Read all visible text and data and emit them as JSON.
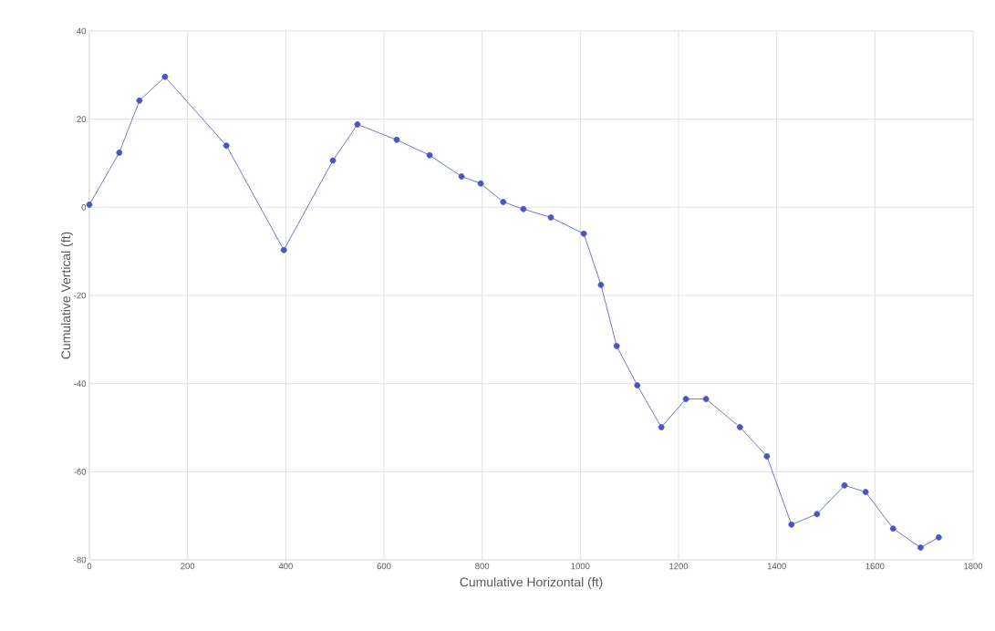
{
  "chart_data": {
    "type": "line",
    "xlabel": "Cumulative Horizontal (ft)",
    "ylabel": "Cumulative Vertical (ft)",
    "xlim": [
      0,
      1800
    ],
    "xticks": [
      0,
      200,
      400,
      600,
      800,
      1000,
      1200,
      1400,
      1600,
      1800
    ],
    "ylim": [
      -80,
      40
    ],
    "yticks": [
      -80,
      -60,
      -40,
      -20,
      0,
      20,
      40
    ],
    "grid": true,
    "marker": "circle",
    "line_style": "solid",
    "x": [
      0,
      61,
      102,
      154,
      279,
      396,
      496,
      546,
      626,
      693,
      758,
      797,
      843,
      884,
      940,
      1007,
      1042,
      1074,
      1116,
      1165,
      1215,
      1256,
      1325,
      1380,
      1430,
      1482,
      1538,
      1581,
      1637,
      1693,
      1730
    ],
    "series": [
      {
        "color": "#4b55c0",
        "values": [
          0.6,
          12.4,
          24.2,
          29.6,
          14,
          -9.7,
          10.6,
          18.8,
          15.3,
          11.8,
          7,
          5.4,
          1.2,
          -0.4,
          -2.3,
          -6,
          -17.6,
          -31.5,
          -40.4,
          -49.9,
          -43.5,
          -43.5,
          -49.9,
          -56.5,
          -72,
          -69.6,
          -63.1,
          -64.6,
          -72.9,
          -77.2,
          -74.9
        ]
      }
    ]
  }
}
